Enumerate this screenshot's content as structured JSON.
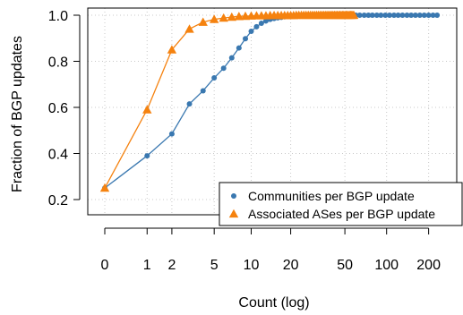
{
  "chart_data": {
    "type": "line",
    "xlabel": "Count (log)",
    "ylabel": "Fraction of BGP updates",
    "xscale": "log(1+x)",
    "xlim": [
      0,
      240
    ],
    "ylim": [
      0.2,
      1.0
    ],
    "x_ticks": [
      0,
      1,
      2,
      5,
      10,
      20,
      50,
      100,
      200
    ],
    "x_tick_labels": [
      "0",
      "1",
      "2",
      "5",
      "10",
      "20",
      "50",
      "100",
      "200"
    ],
    "y_ticks": [
      0.2,
      0.4,
      0.6,
      0.8,
      1.0
    ],
    "y_tick_labels": [
      "0.2",
      "0.4",
      "0.6",
      "0.8",
      "1.0"
    ],
    "grid": true,
    "legend_position": "bottom-right",
    "series": [
      {
        "name": "Communities per BGP update",
        "color": "#3a78b0",
        "marker": "circle",
        "x": [
          0,
          1,
          2,
          3,
          4,
          5,
          6,
          7,
          8,
          9,
          10,
          11,
          12,
          13,
          14,
          15,
          16,
          17,
          18,
          19,
          20,
          21,
          22,
          23,
          24,
          25,
          26,
          27,
          28,
          29,
          30,
          31,
          32,
          33,
          34,
          35,
          36,
          37,
          38,
          39,
          40,
          41,
          42,
          43,
          44,
          45,
          46,
          47,
          48,
          49,
          50,
          51,
          52,
          53,
          54,
          55,
          56,
          57,
          58,
          59,
          60,
          64,
          69,
          74,
          79,
          85,
          91,
          98,
          105,
          113,
          121,
          130,
          140,
          150,
          161,
          173,
          186,
          200,
          215,
          230
        ],
        "values": [
          0.25,
          0.39,
          0.485,
          0.615,
          0.672,
          0.728,
          0.77,
          0.815,
          0.858,
          0.898,
          0.93,
          0.95,
          0.965,
          0.975,
          0.982,
          0.986,
          0.989,
          0.991,
          0.993,
          0.994,
          0.995,
          0.996,
          0.996,
          0.997,
          0.997,
          0.997,
          0.998,
          0.998,
          0.998,
          0.998,
          0.998,
          0.998,
          0.999,
          0.999,
          0.999,
          0.999,
          0.999,
          0.999,
          0.999,
          0.999,
          0.999,
          0.999,
          0.999,
          0.999,
          0.999,
          0.999,
          0.999,
          0.999,
          0.999,
          0.999,
          0.999,
          1.0,
          1.0,
          1.0,
          1.0,
          1.0,
          1.0,
          1.0,
          1.0,
          1.0,
          1.0,
          1.0,
          1.0,
          1.0,
          1.0,
          1.0,
          1.0,
          1.0,
          1.0,
          1.0,
          1.0,
          1.0,
          1.0,
          1.0,
          1.0,
          1.0,
          1.0,
          1.0,
          1.0,
          1.0
        ]
      },
      {
        "name": "Associated ASes per BGP update",
        "color": "#f5820f",
        "marker": "triangle",
        "x": [
          0,
          1,
          2,
          3,
          4,
          5,
          6,
          7,
          8,
          9,
          10,
          11,
          12,
          13,
          14,
          15,
          16,
          17,
          18,
          19,
          20,
          21,
          22,
          23,
          24,
          25,
          26,
          27,
          28,
          29,
          30,
          31,
          32,
          33,
          34,
          35,
          36,
          37,
          38,
          39,
          40,
          41,
          42,
          43,
          44,
          45,
          46,
          47,
          48,
          49,
          50,
          51,
          52,
          53,
          54,
          55,
          56,
          57,
          58
        ],
        "values": [
          0.25,
          0.59,
          0.85,
          0.94,
          0.97,
          0.982,
          0.988,
          0.992,
          0.995,
          0.996,
          0.997,
          0.998,
          0.998,
          0.998,
          0.999,
          0.999,
          0.999,
          0.999,
          0.999,
          0.999,
          0.999,
          0.999,
          1.0,
          1.0,
          1.0,
          1.0,
          1.0,
          1.0,
          1.0,
          1.0,
          1.0,
          1.0,
          1.0,
          1.0,
          1.0,
          1.0,
          1.0,
          1.0,
          1.0,
          1.0,
          1.0,
          1.0,
          1.0,
          1.0,
          1.0,
          1.0,
          1.0,
          1.0,
          1.0,
          1.0,
          1.0,
          1.0,
          1.0,
          1.0,
          1.0,
          1.0,
          1.0,
          1.0,
          1.0
        ]
      }
    ]
  }
}
